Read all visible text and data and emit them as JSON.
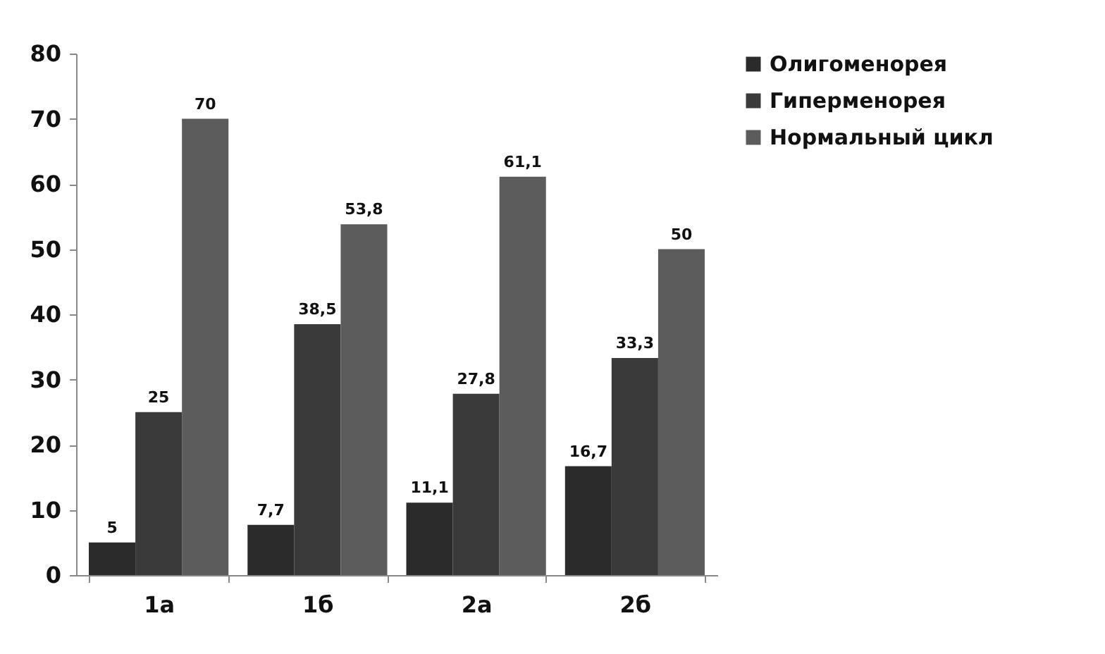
{
  "chart_data": {
    "type": "bar",
    "categories": [
      "1а",
      "1б",
      "2а",
      "2б"
    ],
    "series": [
      {
        "name": "Олигоменорея",
        "color": "#2b2b2b",
        "values": [
          5,
          7.7,
          11.1,
          16.7
        ],
        "value_labels": [
          "5",
          "7,7",
          "11,1",
          "16,7"
        ]
      },
      {
        "name": "Гиперменорея",
        "color": "#3a3a3a",
        "values": [
          25,
          38.5,
          27.8,
          33.3
        ],
        "value_labels": [
          "25",
          "38,5",
          "27,8",
          "33,3"
        ]
      },
      {
        "name": "Нормальный цикл",
        "color": "#5c5c5c",
        "values": [
          70,
          53.8,
          61.1,
          50
        ],
        "value_labels": [
          "70",
          "53,8",
          "61,1",
          "50"
        ]
      }
    ],
    "ylim": [
      0,
      80
    ],
    "yticks": [
      0,
      10,
      20,
      30,
      40,
      50,
      60,
      70,
      80
    ],
    "grid": false,
    "legend": "right"
  }
}
